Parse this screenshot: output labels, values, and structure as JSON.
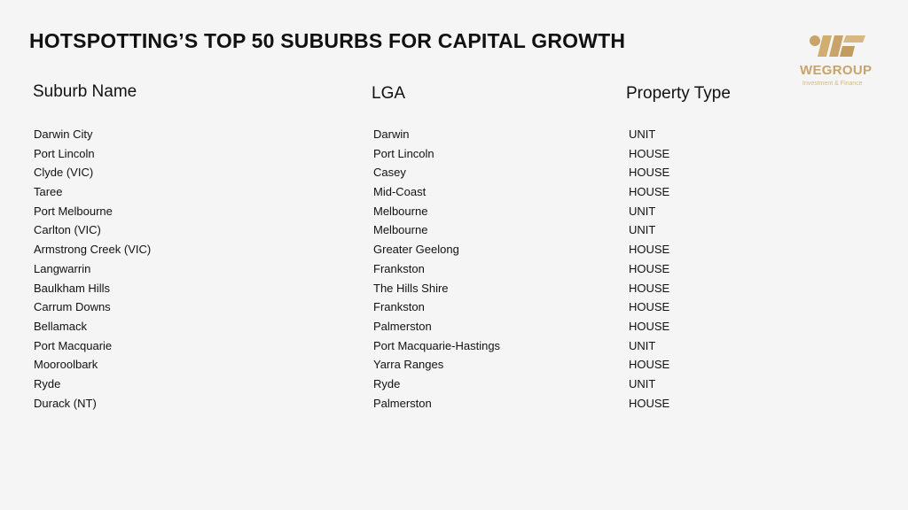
{
  "title": "HOTSPOTTING’S TOP 50 SUBURBS FOR CAPITAL GROWTH",
  "logo": {
    "name": "WEGROUP",
    "tagline": "Investment & Finance",
    "color": "#c9a46a"
  },
  "table": {
    "headers": {
      "suburb": "Suburb Name",
      "lga": "LGA",
      "type": "Property Type"
    },
    "rows": [
      {
        "suburb": "Darwin City",
        "lga": "Darwin",
        "type": "UNIT"
      },
      {
        "suburb": "Port Lincoln",
        "lga": "Port Lincoln",
        "type": "HOUSE"
      },
      {
        "suburb": "Clyde (VIC)",
        "lga": "Casey",
        "type": "HOUSE"
      },
      {
        "suburb": "Taree",
        "lga": "Mid-Coast",
        "type": "HOUSE"
      },
      {
        "suburb": "Port Melbourne",
        "lga": "Melbourne",
        "type": "UNIT"
      },
      {
        "suburb": "Carlton (VIC)",
        "lga": "Melbourne",
        "type": "UNIT"
      },
      {
        "suburb": "Armstrong Creek (VIC)",
        "lga": "Greater Geelong",
        "type": "HOUSE"
      },
      {
        "suburb": "Langwarrin",
        "lga": "Frankston",
        "type": "HOUSE"
      },
      {
        "suburb": "Baulkham Hills",
        "lga": "The Hills Shire",
        "type": "HOUSE"
      },
      {
        "suburb": "Carrum Downs",
        "lga": "Frankston",
        "type": "HOUSE"
      },
      {
        "suburb": "Bellamack",
        "lga": "Palmerston",
        "type": "HOUSE"
      },
      {
        "suburb": "Port Macquarie",
        "lga": "Port Macquarie-Hastings",
        "type": "UNIT"
      },
      {
        "suburb": "Mooroolbark",
        "lga": "Yarra Ranges",
        "type": "HOUSE"
      },
      {
        "suburb": "Ryde",
        "lga": "Ryde",
        "type": "UNIT"
      },
      {
        "suburb": "Durack (NT)",
        "lga": "Palmerston",
        "type": "HOUSE"
      }
    ]
  }
}
